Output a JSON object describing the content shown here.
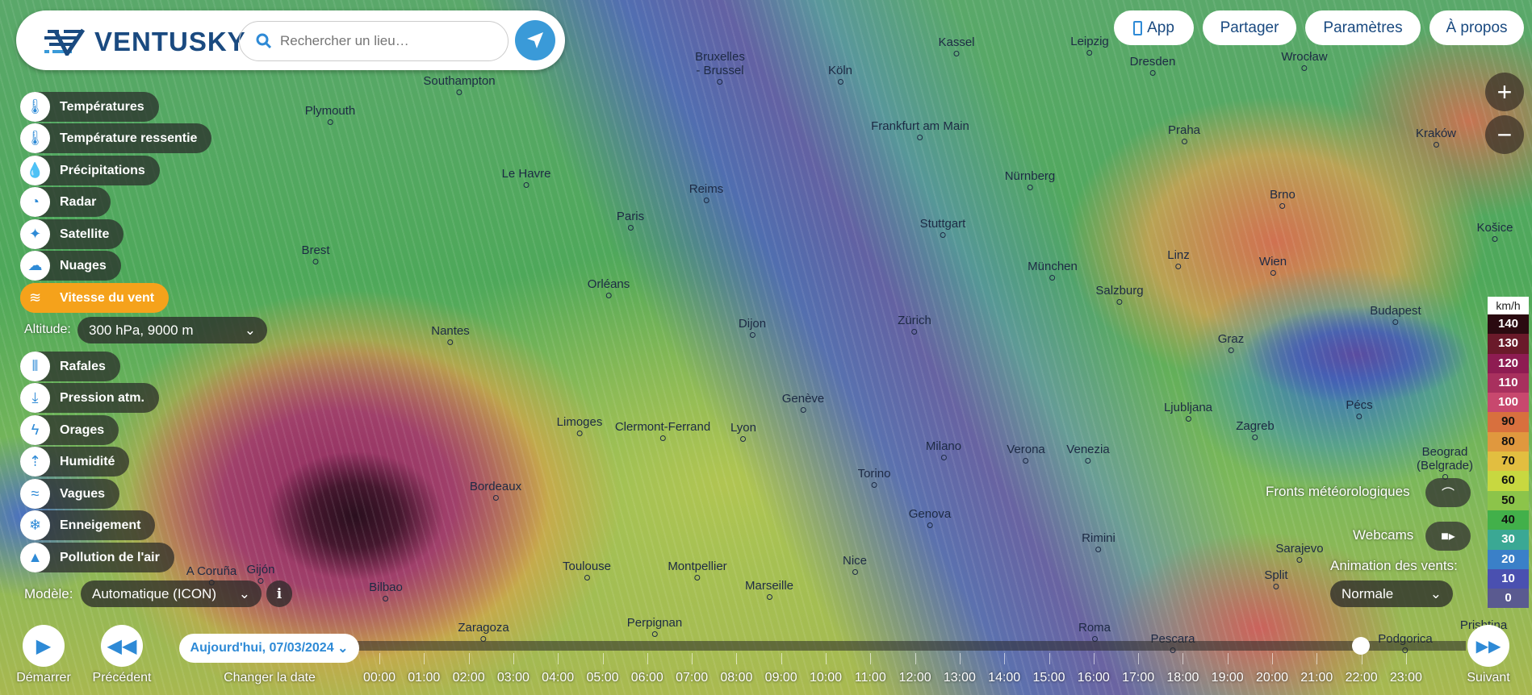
{
  "header": {
    "logo": "VENTUSKY",
    "search_placeholder": "Rechercher un lieu…"
  },
  "top_buttons": {
    "app": "App",
    "share": "Partager",
    "settings": "Paramètres",
    "about": "À propos"
  },
  "menu": [
    {
      "label": "Températures",
      "icon": "thermometer-icon"
    },
    {
      "label": "Température ressentie",
      "icon": "feels-like-icon"
    },
    {
      "label": "Précipitations",
      "icon": "drop-icon"
    },
    {
      "label": "Radar",
      "icon": "radar-icon"
    },
    {
      "label": "Satellite",
      "icon": "satellite-icon"
    },
    {
      "label": "Nuages",
      "icon": "cloud-icon"
    },
    {
      "label": "Vitesse du vent",
      "icon": "wind-icon",
      "active": true
    },
    {
      "label": "Rafales",
      "icon": "gusts-icon"
    },
    {
      "label": "Pression atm.",
      "icon": "pressure-icon"
    },
    {
      "label": "Orages",
      "icon": "lightning-icon"
    },
    {
      "label": "Humidité",
      "icon": "humidity-icon"
    },
    {
      "label": "Vagues",
      "icon": "waves-icon"
    },
    {
      "label": "Enneigement",
      "icon": "snowflake-icon"
    },
    {
      "label": "Pollution de l'air",
      "icon": "factory-icon"
    }
  ],
  "altitude": {
    "label": "Altitude:",
    "value": "300 hPa, 9000 m"
  },
  "model": {
    "label": "Modèle:",
    "value": "Automatique (ICON)"
  },
  "accent": "#f5a21b",
  "controls": {
    "play": "Démarrer",
    "previous": "Précédent",
    "change_date": "Changer la date",
    "date": "Aujourd'hui, 07/03/2024",
    "next": "Suivant"
  },
  "timeline": {
    "hours": [
      "00:00",
      "01:00",
      "02:00",
      "03:00",
      "04:00",
      "05:00",
      "06:00",
      "07:00",
      "08:00",
      "09:00",
      "10:00",
      "11:00",
      "12:00",
      "13:00",
      "14:00",
      "15:00",
      "16:00",
      "17:00",
      "18:00",
      "19:00",
      "20:00",
      "21:00",
      "22:00",
      "23:00"
    ],
    "current": "22:00"
  },
  "right_panel": {
    "fronts": "Fronts météorologiques",
    "webcams": "Webcams",
    "animation_label": "Animation des vents:",
    "animation_value": "Normale"
  },
  "legend": {
    "unit": "km/h",
    "steps": [
      {
        "v": "140",
        "c": "#2a0a10",
        "t": "#fff"
      },
      {
        "v": "130",
        "c": "#6a1a2a",
        "t": "#fff"
      },
      {
        "v": "120",
        "c": "#8e1c52",
        "t": "#fff"
      },
      {
        "v": "110",
        "c": "#a8305e",
        "t": "#fff"
      },
      {
        "v": "100",
        "c": "#c8486e",
        "t": "#fff"
      },
      {
        "v": "90",
        "c": "#d8703e",
        "t": "#111"
      },
      {
        "v": "80",
        "c": "#e0983e",
        "t": "#111"
      },
      {
        "v": "70",
        "c": "#e2be40",
        "t": "#111"
      },
      {
        "v": "60",
        "c": "#c8d840",
        "t": "#111"
      },
      {
        "v": "50",
        "c": "#8cc44a",
        "t": "#111"
      },
      {
        "v": "40",
        "c": "#42b04a",
        "t": "#111"
      },
      {
        "v": "30",
        "c": "#3aa894",
        "t": "#fff"
      },
      {
        "v": "20",
        "c": "#3a80c8",
        "t": "#fff"
      },
      {
        "v": "10",
        "c": "#4a50b0",
        "t": "#fff"
      },
      {
        "v": "0",
        "c": "#5a5a90",
        "t": "#fff"
      }
    ]
  },
  "cities": [
    "Southampton",
    "Plymouth",
    "Le Havre",
    "Brest",
    "Paris",
    "Reims",
    "Bruxelles\n- Brussel",
    "Köln",
    "Kassel",
    "Leipzig",
    "Dresden",
    "Wrocław",
    "Frankfurt am Main",
    "Praha",
    "Kraków",
    "Nürnberg",
    "Brno",
    "Stuttgart",
    "Košice",
    "Orléans",
    "Linz",
    "Wien",
    "München",
    "Salzburg",
    "Dijon",
    "Nantes",
    "Zürich",
    "Budapest",
    "Graz",
    "Genève",
    "Pécs",
    "Limoges",
    "Clermont-Ferrand",
    "Lyon",
    "Ljubljana",
    "Zagreb",
    "Milano",
    "Verona",
    "Venezia",
    "Bordeaux",
    "Torino",
    "Genova",
    "Rimini",
    "Sarajevo",
    "Toulouse",
    "Montpellier",
    "Nice",
    "Marseille",
    "Split",
    "Perpignan",
    "Pescara",
    "Podgorica",
    "Bilbao",
    "Gijón",
    "A Coruña",
    "Prishtina",
    "Roma",
    "Zaragoza",
    "Beograd (Belgrade)"
  ]
}
